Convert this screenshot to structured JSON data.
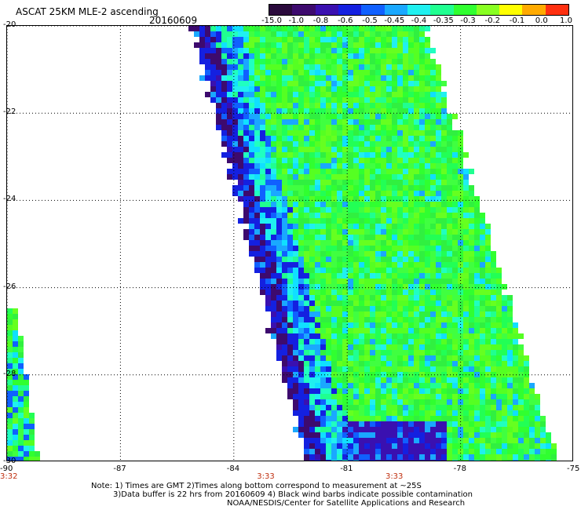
{
  "title": "ASCAT 25KM MLE-2 ascending",
  "date": "20160609",
  "colorbar": {
    "labels": [
      "-15.0",
      "-1.0",
      "-0.8",
      "-0.6",
      "-0.5",
      "-0.45",
      "-0.4",
      "-0.35",
      "-0.3",
      "-0.2",
      "-0.1",
      "0.0",
      "1.0"
    ],
    "colors": [
      "#2a0a3c",
      "#3d0a6e",
      "#3a10b0",
      "#1420e0",
      "#1060ff",
      "#1aa8ff",
      "#20f0f0",
      "#20ff90",
      "#30ff30",
      "#88ff22",
      "#ffff00",
      "#ffaa00",
      "#ff3010"
    ]
  },
  "map": {
    "lon_range": [
      -90,
      -75
    ],
    "lat_range": [
      -30,
      -20
    ],
    "lat_ticks": [
      "-20",
      "-22",
      "-24",
      "-26",
      "-28",
      "-30"
    ],
    "lon_ticks": [
      "-90",
      "-87",
      "-84",
      "-81",
      "-78",
      "-75"
    ],
    "time_labels": [
      {
        "text": "3:32",
        "lon": -90
      },
      {
        "text": "3:33",
        "lon": -83.2
      },
      {
        "text": "3:33",
        "lon": -79.8
      }
    ]
  },
  "notes": [
    "Note: 1) Times are GMT 2)Times along bottom correspond to measurement at ~25S",
    "3)Data buffer is 22 hrs from 20160609 4) Black wind barbs indicate possible contamination",
    "NOAA/NESDIS/Center for Satellite Applications and Research"
  ]
}
